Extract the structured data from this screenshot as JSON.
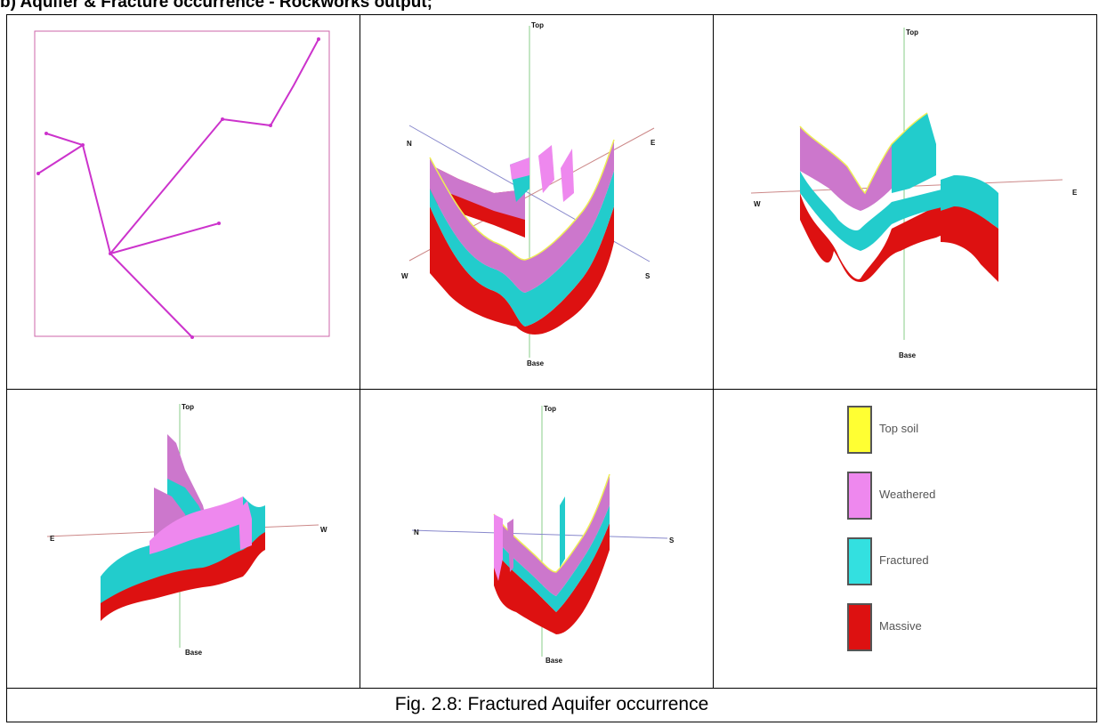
{
  "heading": "b) Aquifer & Fracture occurrence - Rockworks output;",
  "caption": "Fig. 2.8: Fractured Aquifer occurrence",
  "panels": {
    "p2": {
      "top": "Top",
      "base": "Base",
      "n": "N",
      "e": "E",
      "w": "W",
      "s": "S"
    },
    "p3": {
      "top": "Top",
      "base": "Base",
      "w": "W",
      "e": "E"
    },
    "p4": {
      "top": "Top",
      "base": "Base",
      "e": "E",
      "w": "W"
    },
    "p5": {
      "top": "Top",
      "base": "Base",
      "n": "N",
      "s": "S"
    }
  },
  "legend": {
    "items": [
      {
        "label": "Top soil",
        "color": "#ffff33"
      },
      {
        "label": "Weathered",
        "color": "#ee88ee"
      },
      {
        "label": "Fractured",
        "color": "#33e0e0"
      },
      {
        "label": "Massive",
        "color": "#dd1111"
      }
    ]
  },
  "colors": {
    "topsoil": "#ffff33",
    "weathered": "#cc77cc",
    "fractured": "#22cccc",
    "massive": "#dd1111",
    "map_line": "#cc33cc"
  }
}
